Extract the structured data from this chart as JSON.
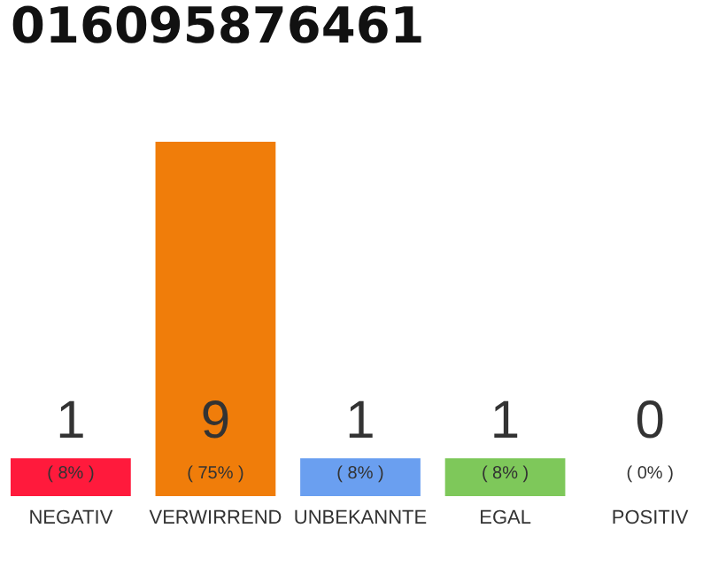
{
  "chart_data": {
    "type": "bar",
    "title": "016095876461",
    "categories": [
      "NEGATIV",
      "VERWIRREND",
      "UNBEKANNTE",
      "EGAL",
      "POSITIV"
    ],
    "values": [
      8,
      75,
      8,
      8,
      0
    ],
    "colors": [
      "#ff1a3c",
      "#f07d0a",
      "#6a9ff0",
      "#7ec85a",
      "#d9d9d9"
    ],
    "value_labels": [
      "( 8% )",
      "( 75% )",
      "( 8% )",
      "( 8% )",
      "( 0% )"
    ],
    "annotations": [
      "1",
      "9",
      "1",
      "1",
      "0"
    ]
  }
}
